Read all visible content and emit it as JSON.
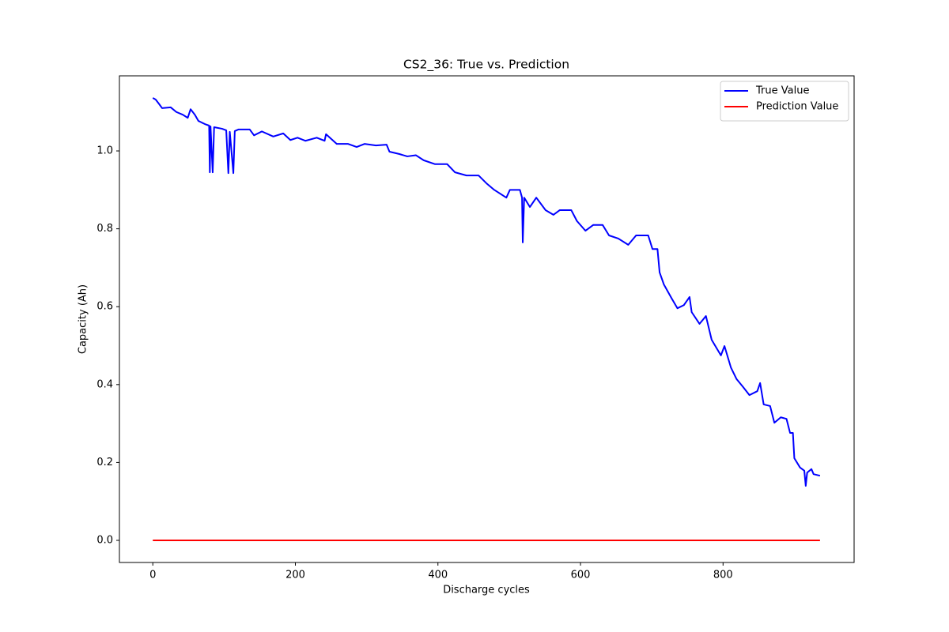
{
  "chart_data": {
    "type": "line",
    "title": "CS2_36: True vs. Prediction",
    "x_label": "Discharge cycles",
    "y_label": "Capacity (Ah)",
    "xlim": [
      -46.85,
      983.85
    ],
    "ylim": [
      -0.0568,
      1.1928
    ],
    "xticks": [
      0,
      200,
      400,
      600,
      800
    ],
    "yticks": [
      {
        "value": 0,
        "label": "0.0"
      },
      0.2,
      0.4,
      0.6,
      0.8,
      {
        "value": 1,
        "label": "1.0"
      }
    ],
    "grid": false,
    "legend": "upper right",
    "series": [
      {
        "name": "True Value",
        "color": "#0000ff",
        "x": [
          0,
          4,
          9,
          13,
          25,
          33,
          42,
          49,
          53,
          59,
          64,
          73,
          79,
          80,
          81,
          84,
          86,
          97,
          103,
          106,
          108,
          113,
          115,
          120,
          136,
          142,
          153,
          169,
          183,
          193,
          203,
          214,
          230,
          241,
          243,
          258,
          274,
          286,
          297,
          313,
          328,
          332,
          346,
          357,
          369,
          380,
          396,
          413,
          424,
          440,
          457,
          468,
          479,
          496,
          501,
          515,
          518,
          519,
          521,
          529,
          538,
          551,
          562,
          571,
          587,
          595,
          607,
          618,
          631,
          640,
          653,
          667,
          678,
          695,
          701,
          708,
          711,
          717,
          728,
          736,
          745,
          753,
          756,
          767,
          776,
          784,
          797,
          802,
          811,
          819,
          828,
          837,
          848,
          852,
          857,
          866,
          872,
          881,
          889,
          894,
          898,
          900,
          908,
          914,
          916,
          918,
          924,
          927,
          936
        ],
        "values": [
          1.136,
          1.132,
          1.12,
          1.11,
          1.112,
          1.1,
          1.093,
          1.085,
          1.107,
          1.093,
          1.077,
          1.069,
          1.065,
          0.945,
          1.063,
          0.945,
          1.061,
          1.057,
          1.053,
          0.943,
          1.049,
          0.943,
          1.051,
          1.055,
          1.055,
          1.04,
          1.05,
          1.037,
          1.045,
          1.028,
          1.034,
          1.026,
          1.034,
          1.026,
          1.043,
          1.018,
          1.018,
          1.01,
          1.018,
          1.014,
          1.016,
          0.998,
          0.992,
          0.986,
          0.989,
          0.976,
          0.966,
          0.966,
          0.945,
          0.937,
          0.937,
          0.917,
          0.9,
          0.88,
          0.9,
          0.9,
          0.88,
          0.765,
          0.88,
          0.856,
          0.88,
          0.848,
          0.836,
          0.848,
          0.848,
          0.82,
          0.795,
          0.81,
          0.81,
          0.783,
          0.775,
          0.759,
          0.783,
          0.783,
          0.748,
          0.748,
          0.688,
          0.657,
          0.621,
          0.596,
          0.604,
          0.625,
          0.586,
          0.556,
          0.576,
          0.515,
          0.475,
          0.499,
          0.444,
          0.414,
          0.394,
          0.373,
          0.383,
          0.404,
          0.349,
          0.345,
          0.302,
          0.316,
          0.312,
          0.276,
          0.276,
          0.211,
          0.187,
          0.179,
          0.14,
          0.174,
          0.183,
          0.17,
          0.166
        ]
      },
      {
        "name": "Prediction Value",
        "color": "#ff0000",
        "x": [
          0,
          936
        ],
        "values": [
          0,
          0
        ]
      }
    ]
  }
}
